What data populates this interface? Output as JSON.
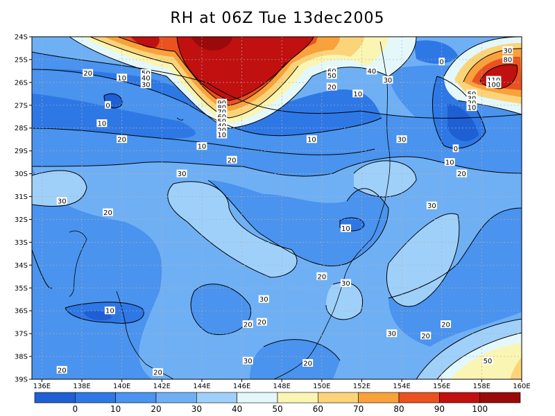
{
  "title": "RH at 06Z Tue 13dec2005",
  "chart_data": {
    "type": "heatmap",
    "variable": "RH",
    "x_axis": {
      "ticks": [
        "136E",
        "138E",
        "140E",
        "142E",
        "144E",
        "146E",
        "148E",
        "150E",
        "152E",
        "154E",
        "156E",
        "158E",
        "160E"
      ],
      "range": [
        135.5,
        160
      ]
    },
    "y_axis": {
      "ticks": [
        "24S",
        "25S",
        "26S",
        "27S",
        "28S",
        "29S",
        "30S",
        "31S",
        "32S",
        "33S",
        "34S",
        "35S",
        "36S",
        "37S",
        "38S",
        "39S"
      ],
      "range": [
        -39,
        -24
      ]
    },
    "grid": "dotted",
    "colorbar": {
      "levels": [
        0,
        10,
        20,
        30,
        40,
        50,
        60,
        70,
        80,
        90,
        100
      ],
      "colors": [
        "#1f5fd4",
        "#2e78e6",
        "#4a93ee",
        "#6fb0f5",
        "#9fd0fa",
        "#e4f8fb",
        "#fbf5b3",
        "#fbd47a",
        "#f9a13a",
        "#ea5220",
        "#c11010",
        "#9a0a0a"
      ],
      "labels": [
        "0",
        "10",
        "20",
        "30",
        "40",
        "50",
        "60",
        "70",
        "80",
        "90",
        "100"
      ]
    },
    "contour_labels": [
      {
        "v": "20",
        "lon": 138.3,
        "lat": -25.6
      },
      {
        "v": "10",
        "lon": 140.0,
        "lat": -25.8
      },
      {
        "v": "50",
        "lon": 141.2,
        "lat": -25.6
      },
      {
        "v": "40",
        "lon": 141.2,
        "lat": -25.8
      },
      {
        "v": "30",
        "lon": 141.2,
        "lat": -26.1
      },
      {
        "v": "0",
        "lon": 139.3,
        "lat": -27.0
      },
      {
        "v": "10",
        "lon": 139.0,
        "lat": -27.8
      },
      {
        "v": "20",
        "lon": 140.0,
        "lat": -28.5
      },
      {
        "v": "10",
        "lon": 144.0,
        "lat": -28.8
      },
      {
        "v": "20",
        "lon": 145.5,
        "lat": -29.4
      },
      {
        "v": "90",
        "lon": 145.0,
        "lat": -26.9
      },
      {
        "v": "80",
        "lon": 145.0,
        "lat": -27.1
      },
      {
        "v": "70",
        "lon": 145.0,
        "lat": -27.3
      },
      {
        "v": "60",
        "lon": 145.0,
        "lat": -27.5
      },
      {
        "v": "50",
        "lon": 145.0,
        "lat": -27.7
      },
      {
        "v": "40",
        "lon": 145.0,
        "lat": -27.9
      },
      {
        "v": "20",
        "lon": 145.0,
        "lat": -28.1
      },
      {
        "v": "10",
        "lon": 145.0,
        "lat": -28.3
      },
      {
        "v": "60",
        "lon": 150.5,
        "lat": -25.5
      },
      {
        "v": "50",
        "lon": 150.5,
        "lat": -25.7
      },
      {
        "v": "40",
        "lon": 152.5,
        "lat": -25.5
      },
      {
        "v": "30",
        "lon": 153.3,
        "lat": -25.9
      },
      {
        "v": "20",
        "lon": 150.5,
        "lat": -26.2
      },
      {
        "v": "10",
        "lon": 151.8,
        "lat": -26.5
      },
      {
        "v": "10",
        "lon": 149.5,
        "lat": -28.5
      },
      {
        "v": "30",
        "lon": 154.0,
        "lat": -28.5
      },
      {
        "v": "0",
        "lon": 156.0,
        "lat": -25.1
      },
      {
        "v": "0",
        "lon": 156.7,
        "lat": -28.9
      },
      {
        "v": "10",
        "lon": 156.4,
        "lat": -29.5
      },
      {
        "v": "20",
        "lon": 157.0,
        "lat": -30.0
      },
      {
        "v": "30",
        "lon": 159.3,
        "lat": -24.6
      },
      {
        "v": "80",
        "lon": 159.3,
        "lat": -25.0
      },
      {
        "v": "110",
        "lon": 158.6,
        "lat": -25.9
      },
      {
        "v": "100",
        "lon": 158.6,
        "lat": -26.1
      },
      {
        "v": "50",
        "lon": 157.5,
        "lat": -26.5
      },
      {
        "v": "30",
        "lon": 157.5,
        "lat": -26.7
      },
      {
        "v": "20",
        "lon": 157.5,
        "lat": -26.9
      },
      {
        "v": "10",
        "lon": 157.5,
        "lat": -27.1
      },
      {
        "v": "30",
        "lon": 143.0,
        "lat": -30.0
      },
      {
        "v": "30",
        "lon": 137.0,
        "lat": -31.2
      },
      {
        "v": "20",
        "lon": 139.3,
        "lat": -31.7
      },
      {
        "v": "10",
        "lon": 151.2,
        "lat": -32.4
      },
      {
        "v": "30",
        "lon": 155.5,
        "lat": -31.4
      },
      {
        "v": "20",
        "lon": 150.0,
        "lat": -34.5
      },
      {
        "v": "30",
        "lon": 151.2,
        "lat": -34.8
      },
      {
        "v": "30",
        "lon": 147.1,
        "lat": -35.5
      },
      {
        "v": "10",
        "lon": 139.4,
        "lat": -36.0
      },
      {
        "v": "20",
        "lon": 146.3,
        "lat": -36.6
      },
      {
        "v": "20",
        "lon": 147.0,
        "lat": -36.5
      },
      {
        "v": "30",
        "lon": 153.5,
        "lat": -37.0
      },
      {
        "v": "20",
        "lon": 155.2,
        "lat": -37.1
      },
      {
        "v": "20",
        "lon": 156.2,
        "lat": -36.6
      },
      {
        "v": "30",
        "lon": 146.3,
        "lat": -38.2
      },
      {
        "v": "20",
        "lon": 149.3,
        "lat": -38.3
      },
      {
        "v": "20",
        "lon": 137.0,
        "lat": -38.6
      },
      {
        "v": "20",
        "lon": 141.8,
        "lat": -38.7
      },
      {
        "v": "50",
        "lon": 158.3,
        "lat": -38.2
      }
    ]
  }
}
